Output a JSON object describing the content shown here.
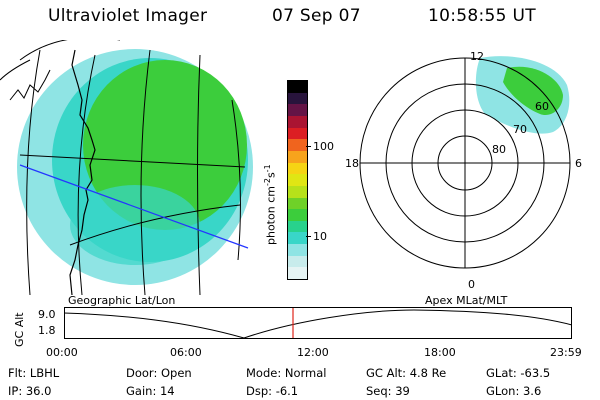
{
  "header": {
    "instrument": "Ultraviolet Imager",
    "date": "07 Sep 07",
    "time": "10:58:55 UT"
  },
  "colorbar": {
    "unit_text": "photon cm",
    "unit_exp1": "-2",
    "unit_s": "s",
    "unit_exp2": "-1",
    "ticks": [
      "100",
      "10"
    ],
    "colors": [
      "#e6f4f4",
      "#c8ecec",
      "#8fe4e4",
      "#39d6c8",
      "#28d28c",
      "#3ccd3c",
      "#6fd128",
      "#b7e11a",
      "#e0e614",
      "#f6d414",
      "#f7a31c",
      "#f0641e",
      "#dc1e23",
      "#aa1432",
      "#641446",
      "#28143c",
      "#000000"
    ]
  },
  "geo_map": {
    "label": "Geographic Lat/Lon",
    "aurora_color": "#3ccd3c",
    "halo_color": "#8fe4e4"
  },
  "polar_plot": {
    "label": "Apex MLat/MLT",
    "mlt_labels": {
      "top": "12",
      "left": "18",
      "right": "6",
      "bottom": "0"
    },
    "lat_labels": [
      "60",
      "70",
      "80"
    ]
  },
  "orbit_plot": {
    "ylabel": "GC Alt",
    "yticks": [
      "9.0",
      "1.8"
    ],
    "xticks": [
      "00:00",
      "06:00",
      "12:00",
      "18:00",
      "23:59"
    ],
    "marker_color": "#e0241c"
  },
  "status": {
    "filter": {
      "label": "Flt:",
      "value": "LBHL"
    },
    "door": {
      "label": "Door:",
      "value": "Open"
    },
    "mode": {
      "label": "Mode:",
      "value": "Normal"
    },
    "gc_alt": {
      "label": "GC Alt:",
      "value": "4.8 Re"
    },
    "glat": {
      "label": "GLat:",
      "value": "-63.5"
    },
    "ip": {
      "label": "IP:",
      "value": "36.0"
    },
    "gain": {
      "label": "Gain:",
      "value": "14"
    },
    "dsp": {
      "label": "Dsp:",
      "value": "-6.1"
    },
    "seq": {
      "label": "Seq:",
      "value": "39"
    },
    "glon": {
      "label": "GLon:",
      "value": "3.6"
    }
  }
}
